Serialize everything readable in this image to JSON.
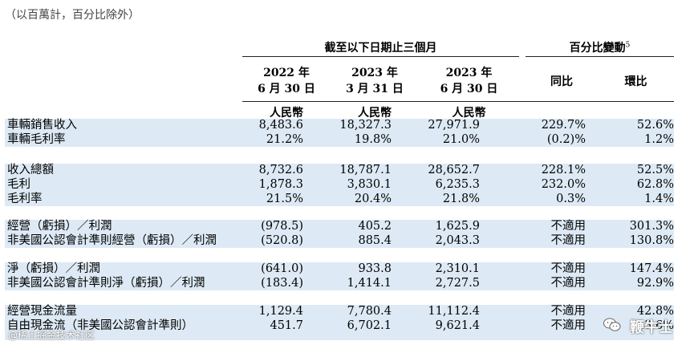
{
  "note": "（以百萬計，百分比除外）",
  "header": {
    "group1": "截至以下日期止三個月",
    "group2": "百分比變動",
    "group2_sup": "5",
    "cols": [
      {
        "line1": "2022 年",
        "line2": "6 月 30 日",
        "currency": "人民幣"
      },
      {
        "line1": "2023 年",
        "line2": "3 月 31 日",
        "currency": "人民幣"
      },
      {
        "line1": "2023 年",
        "line2": "6 月 30 日",
        "currency": "人民幣"
      }
    ],
    "yoy": "同比",
    "qoq": "環比"
  },
  "rows": [
    {
      "label": "車輛銷售收入",
      "v1": "8,483.6",
      "v2": "18,327.3",
      "v3": "27,971.9",
      "yoy": "229.7%",
      "qoq": "52.6%"
    },
    {
      "label": "車輛毛利率",
      "v1": "21.2%",
      "v2": "19.8%",
      "v3": "21.0%",
      "yoy": "(0.2)%",
      "qoq": "1.2%"
    },
    {
      "label": "收入總額",
      "v1": "8,732.6",
      "v2": "18,787.1",
      "v3": "28,652.7",
      "yoy": "228.1%",
      "qoq": "52.5%"
    },
    {
      "label": "毛利",
      "v1": "1,878.3",
      "v2": "3,830.1",
      "v3": "6,235.3",
      "yoy": "232.0%",
      "qoq": "62.8%"
    },
    {
      "label": "毛利率",
      "v1": "21.5%",
      "v2": "20.4%",
      "v3": "21.8%",
      "yoy": "0.3%",
      "qoq": "1.4%"
    },
    {
      "label": "經營（虧損）／利潤",
      "v1": "(978.5)",
      "v2": "405.2",
      "v3": "1,625.9",
      "yoy": "不適用",
      "qoq": "301.3%"
    },
    {
      "label": "非美國公認會計準則經營（虧損）／利潤",
      "v1": "(520.8)",
      "v2": "885.4",
      "v3": "2,043.3",
      "yoy": "不適用",
      "qoq": "130.8%"
    },
    {
      "label": "淨（虧損）／利潤",
      "v1": "(641.0)",
      "v2": "933.8",
      "v3": "2,310.1",
      "yoy": "不適用",
      "qoq": "147.4%"
    },
    {
      "label": "非美國公認會計準則淨（虧損）／利潤",
      "v1": "(183.4)",
      "v2": "1,414.1",
      "v3": "2,727.5",
      "yoy": "不適用",
      "qoq": "92.9%"
    },
    {
      "label": "經營現金流量",
      "v1": "1,129.4",
      "v2": "7,780.4",
      "v3": "11,112.4",
      "yoy": "不適用",
      "qoq": "42.8%"
    },
    {
      "label": "自由現金流（非美國公認會計準則）",
      "v1": "451.7",
      "v2": "6,702.1",
      "v3": "9,621.4",
      "yoy": "不適用",
      "qoq": "43.6%"
    }
  ],
  "watermark": {
    "text": "鞭牛士",
    "icon": "wechat-icon"
  },
  "watermark_bottom": "@稀土掘金技术社区"
}
